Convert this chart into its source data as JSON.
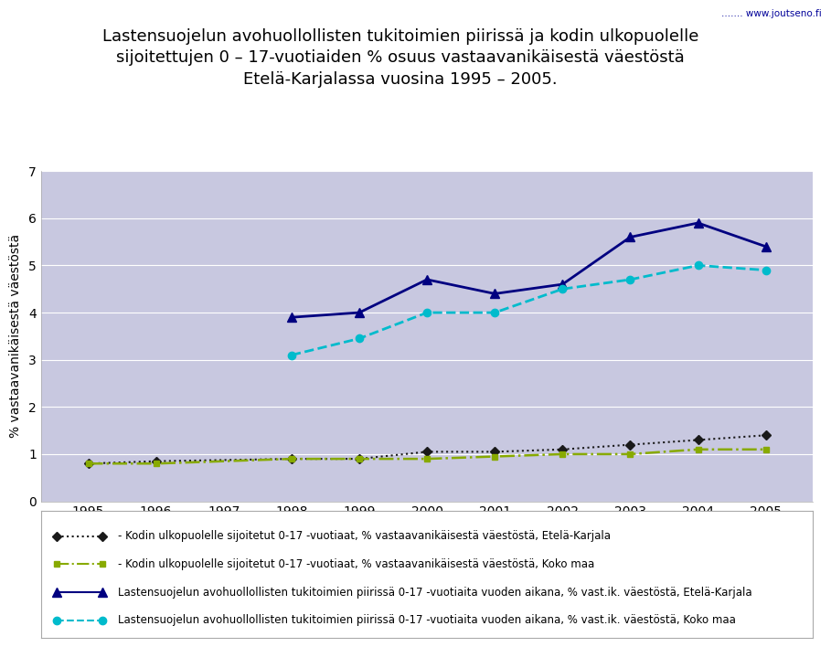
{
  "title_line1": "Lastensuojelun avohuollollisten tukitoimien piirissä ja kodin ulkopuolelle",
  "title_line2": "sijoitettujen 0 – 17-vuotiaiden % osuus vastaavanikäisestä väestöstä",
  "title_line3": "Etelä-Karjalassa vuosina 1995 – 2005.",
  "ylabel": "% vastaavanikäisestä väestöstä",
  "years": [
    1995,
    1996,
    1997,
    1998,
    1999,
    2000,
    2001,
    2002,
    2003,
    2004,
    2005
  ],
  "series1_label": "- Kodin ulkopuolelle sijoitetut 0-17 -vuotiaat, % vastaavanikäisestä väestöstä, Etelä-Karjala",
  "series1_values": [
    0.8,
    0.85,
    null,
    0.9,
    0.9,
    1.05,
    1.05,
    1.1,
    1.2,
    1.3,
    1.4
  ],
  "series1_color": "#1a1a1a",
  "series2_label": "- Kodin ulkopuolelle sijoitetut 0-17 -vuotiaat, % vastaavanikäisestä väestöstä, Koko maa",
  "series2_values": [
    0.8,
    0.8,
    null,
    0.9,
    0.9,
    0.9,
    0.95,
    1.0,
    1.0,
    1.1,
    1.1
  ],
  "series2_color": "#88aa00",
  "series3_label": "Lastensuojelun avohuollollisten tukitoimien piirissä 0-17 -vuotiaita vuoden aikana, % vast.ik. väestöstä, Etelä-Karjala",
  "series3_values": [
    null,
    null,
    null,
    3.9,
    4.0,
    4.7,
    4.4,
    4.6,
    5.6,
    5.9,
    5.4
  ],
  "series3_color": "#000080",
  "series4_label": "Lastensuojelun avohuollollisten tukitoimien piirissä 0-17 -vuotiaita vuoden aikana, % vast.ik. väestöstä, Koko maa",
  "series4_values": [
    null,
    null,
    null,
    3.1,
    3.45,
    4.0,
    4.0,
    4.5,
    4.7,
    5.0,
    4.9
  ],
  "series4_color": "#00bbcc",
  "ylim": [
    0,
    7
  ],
  "yticks": [
    0,
    1,
    2,
    3,
    4,
    5,
    6,
    7
  ],
  "fig_bg_color": "#ffffff",
  "plot_bg_color": "#c8c8e0",
  "title_area_color": "#ffffff",
  "watermark_text": "....... www.joutseno.fi",
  "watermark_color": "#000099",
  "title_fontsize": 13,
  "axis_fontsize": 10,
  "legend_fontsize": 8.5
}
